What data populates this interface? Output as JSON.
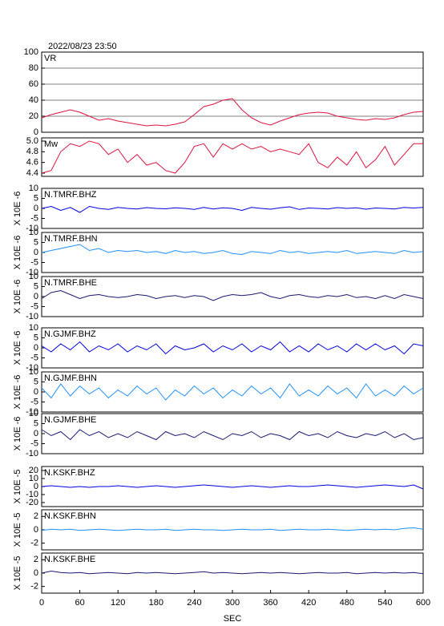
{
  "chart_data": [
    {
      "type": "line",
      "title": "2022/08/23 23:50",
      "label": "VR",
      "color": "#dc143c",
      "grid": true,
      "xlim": [
        0,
        600
      ],
      "ylim": [
        0,
        100
      ],
      "yticks": [
        0,
        20,
        40,
        60,
        80,
        100
      ],
      "x": [
        0,
        15,
        30,
        45,
        60,
        75,
        90,
        105,
        120,
        135,
        150,
        165,
        180,
        195,
        210,
        225,
        240,
        255,
        270,
        285,
        300,
        315,
        330,
        345,
        360,
        375,
        390,
        405,
        420,
        435,
        450,
        465,
        480,
        495,
        510,
        525,
        540,
        555,
        570,
        585,
        600
      ],
      "values": [
        18,
        22,
        25,
        28,
        25,
        20,
        15,
        17,
        14,
        12,
        10,
        8,
        9,
        8,
        10,
        13,
        22,
        32,
        35,
        40,
        42,
        28,
        18,
        12,
        9,
        14,
        18,
        22,
        24,
        25,
        24,
        20,
        18,
        16,
        15,
        17,
        16,
        18,
        22,
        25,
        26
      ]
    },
    {
      "type": "line",
      "label": "Mw",
      "color": "#dc143c",
      "grid": false,
      "xlim": [
        0,
        600
      ],
      "ylim": [
        4.34,
        5.06
      ],
      "yticks": [
        4.4,
        4.6,
        4.8,
        {
          "value": 5,
          "label": "5.0"
        }
      ],
      "x": [
        0,
        15,
        30,
        45,
        60,
        75,
        90,
        105,
        120,
        135,
        150,
        165,
        180,
        195,
        210,
        225,
        240,
        255,
        270,
        285,
        300,
        315,
        330,
        345,
        360,
        375,
        390,
        405,
        420,
        435,
        450,
        465,
        480,
        495,
        510,
        525,
        540,
        555,
        570,
        585,
        600
      ],
      "values": [
        4.4,
        4.45,
        4.8,
        4.95,
        4.9,
        5.0,
        4.95,
        4.75,
        4.85,
        4.6,
        4.75,
        4.55,
        4.6,
        4.45,
        4.4,
        4.6,
        4.9,
        4.95,
        4.7,
        4.95,
        4.85,
        4.95,
        4.85,
        4.9,
        4.8,
        4.85,
        4.8,
        4.75,
        4.95,
        4.6,
        4.5,
        4.7,
        4.55,
        4.8,
        4.5,
        4.65,
        4.9,
        4.55,
        4.75,
        4.95,
        4.95
      ]
    },
    {
      "type": "line",
      "label": "N.TMRF.BHZ",
      "ylabel": "X 10E -6",
      "color": "#0000e0",
      "grid": false,
      "xlim": [
        0,
        600
      ],
      "ylim": [
        -10,
        10
      ],
      "yticks": [
        -10,
        -5,
        0,
        5,
        10
      ],
      "x": [
        0,
        15,
        30,
        45,
        60,
        75,
        90,
        105,
        120,
        135,
        150,
        165,
        180,
        195,
        210,
        225,
        240,
        255,
        270,
        285,
        300,
        315,
        330,
        345,
        360,
        375,
        390,
        405,
        420,
        435,
        450,
        465,
        480,
        495,
        510,
        525,
        540,
        555,
        570,
        585,
        600
      ],
      "values": [
        0,
        1,
        -1,
        0.5,
        -2,
        1,
        0,
        -0.5,
        0.5,
        0,
        -0.3,
        0.4,
        0,
        -0.2,
        0.3,
        0,
        -0.5,
        0.5,
        -0.3,
        0.3,
        0,
        -1,
        0.5,
        0,
        -0.4,
        0.3,
        0.8,
        -0.5,
        0.2,
        0,
        -0.3,
        0.4,
        0,
        0.3,
        -0.4,
        0.2,
        0,
        -0.3,
        0.5,
        0.2,
        0.5
      ]
    },
    {
      "type": "line",
      "label": "N.TMRF.BHN",
      "ylabel": "X 10E -6",
      "color": "#1e90ff",
      "grid": false,
      "xlim": [
        0,
        600
      ],
      "ylim": [
        -10,
        10
      ],
      "yticks": [
        -10,
        -5,
        0,
        5,
        10
      ],
      "x": [
        0,
        15,
        30,
        45,
        60,
        75,
        90,
        105,
        120,
        135,
        150,
        165,
        180,
        195,
        210,
        225,
        240,
        255,
        270,
        285,
        300,
        315,
        330,
        345,
        360,
        375,
        390,
        405,
        420,
        435,
        450,
        465,
        480,
        495,
        510,
        525,
        540,
        555,
        570,
        585,
        600
      ],
      "values": [
        0,
        1,
        2,
        3,
        4,
        1,
        2,
        0,
        1,
        0.5,
        1,
        0,
        0.5,
        -0.5,
        1,
        0,
        0.5,
        -0.5,
        0,
        1,
        -0.5,
        -1,
        0.5,
        0,
        -0.5,
        1,
        0,
        0.5,
        -0.5,
        0,
        0.5,
        0,
        1,
        -0.5,
        0,
        0.5,
        0,
        -0.5,
        1,
        0,
        0.5
      ]
    },
    {
      "type": "line",
      "label": "N.TMRF.BHE",
      "ylabel": "X 10E -6",
      "color": "#191970",
      "grid": false,
      "xlim": [
        0,
        600
      ],
      "ylim": [
        -10,
        10
      ],
      "yticks": [
        -10,
        -5,
        0,
        5,
        10
      ],
      "x": [
        0,
        15,
        30,
        45,
        60,
        75,
        90,
        105,
        120,
        135,
        150,
        165,
        180,
        195,
        210,
        225,
        240,
        255,
        270,
        285,
        300,
        315,
        330,
        345,
        360,
        375,
        390,
        405,
        420,
        435,
        450,
        465,
        480,
        495,
        510,
        525,
        540,
        555,
        570,
        585,
        600
      ],
      "values": [
        -1,
        2,
        3,
        1,
        -1,
        0.5,
        1,
        0,
        -0.5,
        0,
        1,
        0.5,
        -1,
        0,
        0.5,
        -0.5,
        0.5,
        0,
        -2,
        0,
        1,
        0.5,
        1,
        2,
        0,
        -1,
        0.5,
        1,
        0,
        -0.5,
        0.5,
        0,
        1,
        -0.5,
        0,
        -1,
        0.5,
        -1,
        1,
        0,
        -1
      ]
    },
    {
      "type": "line",
      "label": "N.GJMF.BHZ",
      "ylabel": "X 10E -6",
      "color": "#0000e0",
      "grid": false,
      "xlim": [
        0,
        600
      ],
      "ylim": [
        -10,
        10
      ],
      "yticks": [
        -10,
        -5,
        0,
        5,
        10
      ],
      "x": [
        0,
        15,
        30,
        45,
        60,
        75,
        90,
        105,
        120,
        135,
        150,
        165,
        180,
        195,
        210,
        225,
        240,
        255,
        270,
        285,
        300,
        315,
        330,
        345,
        360,
        375,
        390,
        405,
        420,
        435,
        450,
        465,
        480,
        495,
        510,
        525,
        540,
        555,
        570,
        585,
        600
      ],
      "values": [
        1,
        -2,
        2,
        -1,
        3,
        -2,
        1,
        -1,
        2,
        -2,
        1,
        -1,
        2,
        -3,
        1,
        -1,
        0,
        2,
        -2,
        1,
        -1,
        2,
        -2,
        1,
        -1,
        3,
        -2,
        1,
        -2,
        2,
        -1,
        1,
        -2,
        2,
        -1,
        2,
        -1,
        1,
        -3,
        2,
        1
      ]
    },
    {
      "type": "line",
      "label": "N.GJMF.BHN",
      "ylabel": "X 10E -6",
      "color": "#1e90ff",
      "grid": false,
      "xlim": [
        0,
        600
      ],
      "ylim": [
        -10,
        10
      ],
      "yticks": [
        -10,
        -5,
        0,
        5,
        10
      ],
      "x": [
        0,
        15,
        30,
        45,
        60,
        75,
        90,
        105,
        120,
        135,
        150,
        165,
        180,
        195,
        210,
        225,
        240,
        255,
        270,
        285,
        300,
        315,
        330,
        345,
        360,
        375,
        390,
        405,
        420,
        435,
        450,
        465,
        480,
        495,
        510,
        525,
        540,
        555,
        570,
        585,
        600
      ],
      "values": [
        2,
        -3,
        4,
        -2,
        3,
        -1,
        2,
        -3,
        1,
        -2,
        3,
        -1,
        2,
        -4,
        1,
        -2,
        3,
        -1,
        2,
        -3,
        1,
        -2,
        3,
        -1,
        2,
        -3,
        4,
        -2,
        1,
        -2,
        3,
        -1,
        2,
        -3,
        4,
        -2,
        1,
        -2,
        3,
        -1,
        2
      ]
    },
    {
      "type": "line",
      "label": "N.GJMF.BHE",
      "ylabel": "X 10E -6",
      "color": "#191970",
      "grid": false,
      "xlim": [
        0,
        600
      ],
      "ylim": [
        -10,
        10
      ],
      "yticks": [
        -10,
        -5,
        0,
        5,
        10
      ],
      "x": [
        0,
        15,
        30,
        45,
        60,
        75,
        90,
        105,
        120,
        135,
        150,
        165,
        180,
        195,
        210,
        225,
        240,
        255,
        270,
        285,
        300,
        315,
        330,
        345,
        360,
        375,
        390,
        405,
        420,
        435,
        450,
        465,
        480,
        495,
        510,
        525,
        540,
        555,
        570,
        585,
        600
      ],
      "values": [
        2,
        -1,
        1,
        -3,
        2,
        -1,
        1,
        -2,
        0,
        -2,
        1,
        -1,
        -3,
        1,
        -1,
        0,
        -2,
        1,
        -1,
        -3,
        0,
        -1,
        1,
        -2,
        0,
        -1,
        -3,
        1,
        -1,
        0,
        -2,
        1,
        -1,
        -2,
        0,
        -1,
        1,
        -2,
        0,
        -3,
        -2
      ]
    },
    {
      "type": "line",
      "label": "N.KSKF.BHZ",
      "ylabel": "X 10E -5",
      "color": "#0000e0",
      "grid": false,
      "xlim": [
        0,
        600
      ],
      "ylim": [
        -25,
        25
      ],
      "yticks": [
        -20,
        -10,
        0,
        10,
        20
      ],
      "x": [
        0,
        15,
        30,
        45,
        60,
        75,
        90,
        105,
        120,
        135,
        150,
        165,
        180,
        195,
        210,
        225,
        240,
        255,
        270,
        285,
        300,
        315,
        330,
        345,
        360,
        375,
        390,
        405,
        420,
        435,
        450,
        465,
        480,
        495,
        510,
        525,
        540,
        555,
        570,
        585,
        600
      ],
      "values": [
        0,
        1,
        0,
        -1,
        0,
        -1,
        0,
        0,
        1,
        0,
        -1,
        0,
        1,
        0,
        -1,
        0,
        1,
        2,
        1,
        0,
        -1,
        0,
        1,
        0,
        -1,
        0,
        1,
        0,
        0,
        1,
        2,
        1,
        0,
        -1,
        0,
        1,
        2,
        1,
        0,
        2,
        -3
      ]
    },
    {
      "type": "line",
      "label": "N.KSKF.BHN",
      "ylabel": "X 10E -5",
      "color": "#1e90ff",
      "grid": false,
      "xlim": [
        0,
        600
      ],
      "ylim": [
        -3,
        3
      ],
      "yticks": [
        -2,
        0,
        2
      ],
      "x": [
        0,
        15,
        30,
        45,
        60,
        75,
        90,
        105,
        120,
        135,
        150,
        165,
        180,
        195,
        210,
        225,
        240,
        255,
        270,
        285,
        300,
        315,
        330,
        345,
        360,
        375,
        390,
        405,
        420,
        435,
        450,
        465,
        480,
        495,
        510,
        525,
        540,
        555,
        570,
        585,
        600
      ],
      "values": [
        -0.1,
        0.1,
        0,
        0.1,
        -0.1,
        0,
        0.1,
        0,
        -0.1,
        0,
        0.1,
        0,
        0,
        0.1,
        -0.1,
        0,
        0.1,
        0,
        0,
        -0.1,
        0,
        0.1,
        0,
        0,
        0.1,
        -0.1,
        0,
        0.1,
        0,
        0,
        0.1,
        0,
        -0.1,
        0,
        0.1,
        0,
        0.1,
        0,
        0.2,
        0.3,
        0.1
      ]
    },
    {
      "type": "line",
      "label": "N.KSKF.BHE",
      "ylabel": "X 10E -5",
      "color": "#191970",
      "grid": false,
      "xlim": [
        0,
        600
      ],
      "ylim": [
        -3,
        3
      ],
      "yticks": [
        -2,
        0,
        2
      ],
      "xticks": [
        0,
        60,
        120,
        180,
        240,
        300,
        360,
        420,
        480,
        540,
        600
      ],
      "xlabel": "SEC",
      "x": [
        0,
        15,
        30,
        45,
        60,
        75,
        90,
        105,
        120,
        135,
        150,
        165,
        180,
        195,
        210,
        225,
        240,
        255,
        270,
        285,
        300,
        315,
        330,
        345,
        360,
        375,
        390,
        405,
        420,
        435,
        450,
        465,
        480,
        495,
        510,
        525,
        540,
        555,
        570,
        585,
        600
      ],
      "values": [
        0,
        0.3,
        0.1,
        0,
        0.1,
        -0.1,
        0,
        0.1,
        0,
        -0.1,
        0.1,
        0,
        0.1,
        0,
        -0.1,
        0,
        0.1,
        0.2,
        0,
        0.1,
        0,
        -0.1,
        0,
        0.1,
        0,
        0.1,
        0,
        -0.1,
        0,
        0.1,
        0,
        0,
        0.1,
        -0.1,
        0,
        0.1,
        0,
        0.1,
        0,
        0.1,
        -0.1
      ]
    }
  ]
}
